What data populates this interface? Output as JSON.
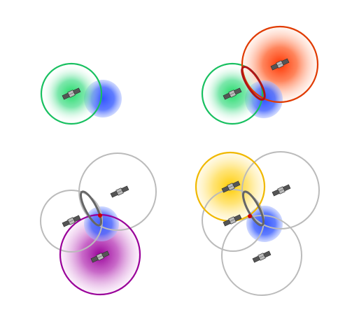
{
  "panels": [
    {
      "spheres": [
        {
          "color": "#22cc66",
          "edge": "#18b85a",
          "highlighted": true
        },
        {
          "color": "#3355ff",
          "edge": "#3355ff",
          "highlighted": false
        }
      ],
      "intersection_ring": false,
      "intersection_points": false
    },
    {
      "spheres": [
        {
          "color": "#22cc66",
          "edge": "#18b85a",
          "highlighted": true
        },
        {
          "color": "#3355ff",
          "edge": "#3355ff",
          "highlighted": false
        },
        {
          "color": "#ff4400",
          "edge": "#e03300",
          "highlighted": true
        }
      ],
      "intersection_ring": true,
      "ring_color": "#b01515",
      "intersection_points": false
    },
    {
      "spheres": [
        {
          "color": "#bbbbbb",
          "edge": "#bbbbbb",
          "highlighted": false
        },
        {
          "color": "#bbbbbb",
          "edge": "#bbbbbb",
          "highlighted": false
        },
        {
          "color": "#3355ff",
          "edge": "#3355ff",
          "highlighted": false
        },
        {
          "color": "#a000a0",
          "edge": "#990099",
          "highlighted": true
        }
      ],
      "intersection_ring": true,
      "ring_color": "#666666",
      "intersection_points": true,
      "point_color": "#cc0000"
    },
    {
      "spheres": [
        {
          "color": "#ffcc00",
          "edge": "#f0b800",
          "highlighted": true
        },
        {
          "color": "#bbbbbb",
          "edge": "#bbbbbb",
          "highlighted": false
        },
        {
          "color": "#bbbbbb",
          "edge": "#bbbbbb",
          "highlighted": false
        },
        {
          "color": "#bbbbbb",
          "edge": "#bbbbbb",
          "highlighted": false
        },
        {
          "color": "#3355ff",
          "edge": "#3355ff",
          "highlighted": false
        }
      ],
      "intersection_ring": true,
      "ring_color": "#666666",
      "intersection_points": true,
      "point_color": "#cc0000"
    }
  ],
  "icons": {
    "satellite": "satellite-icon",
    "earth": "earth-sphere"
  }
}
